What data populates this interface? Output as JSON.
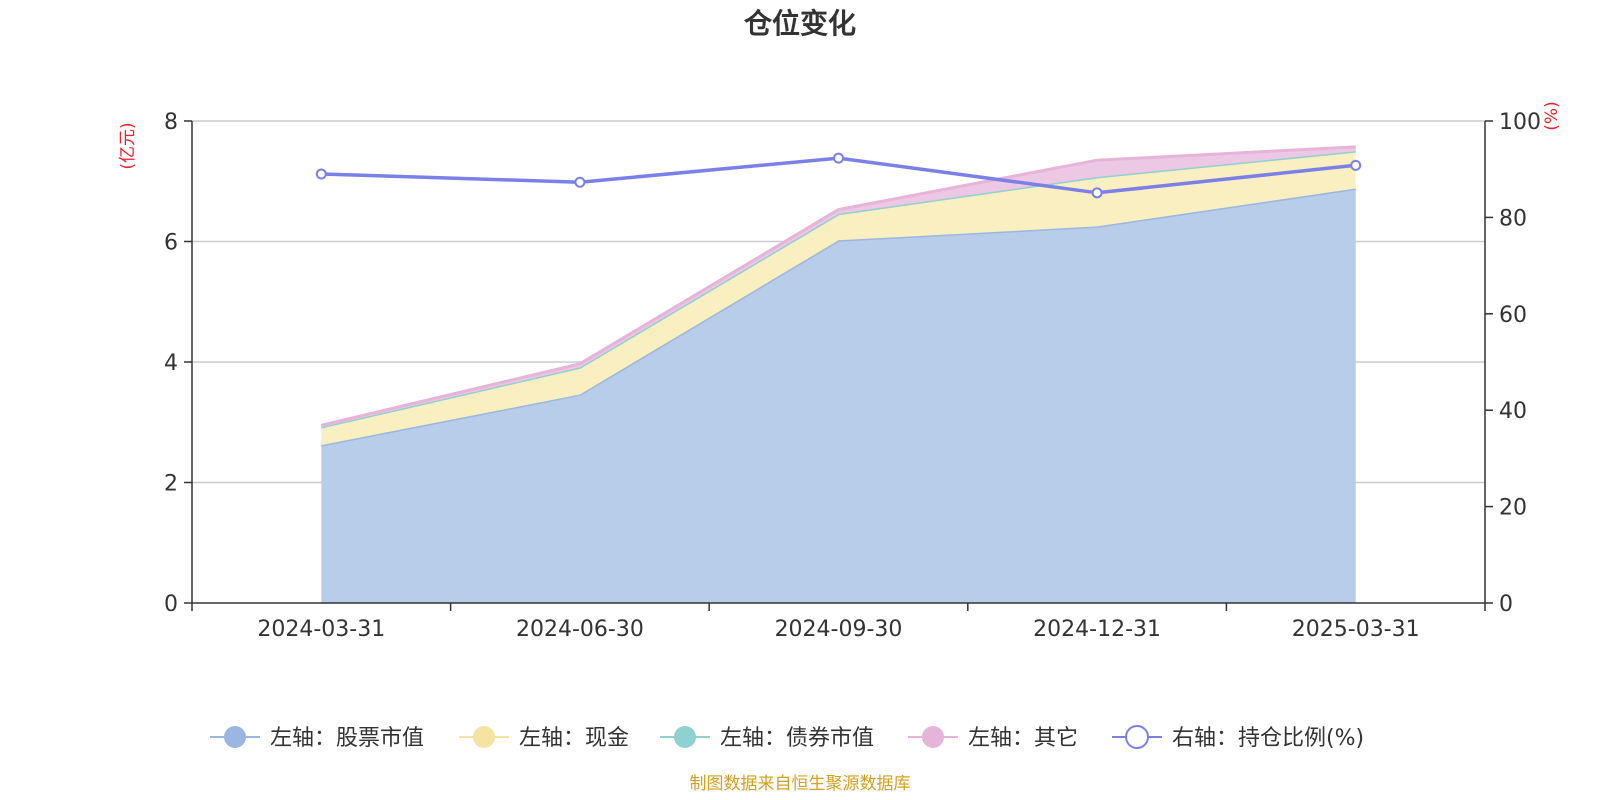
{
  "chart_data": {
    "type": "area",
    "title": "仓位变化",
    "categories": [
      "2024-03-31",
      "2024-06-30",
      "2024-09-30",
      "2024-12-31",
      "2025-03-31"
    ],
    "y_left": {
      "unit": "(亿元)",
      "ticks": [
        "0",
        "2",
        "4",
        "6",
        "8"
      ],
      "range": [
        0,
        8
      ]
    },
    "y_right": {
      "unit": "(%)",
      "ticks": [
        "0",
        "20",
        "40",
        "60",
        "80",
        "100"
      ],
      "range": [
        0,
        100
      ]
    },
    "series": [
      {
        "name": "左轴：股票市值",
        "axis": "left",
        "kind": "stacked-area",
        "color": "#9bb6e0",
        "fill": "#b8cdea",
        "values": [
          2.62,
          3.46,
          6.02,
          6.25,
          6.88
        ]
      },
      {
        "name": "左轴：现金",
        "axis": "left",
        "kind": "stacked-area",
        "color": "#f6e3a2",
        "fill": "#faefc0",
        "values": [
          0.3,
          0.45,
          0.44,
          0.82,
          0.62
        ]
      },
      {
        "name": "左轴：债券市值",
        "axis": "left",
        "kind": "stacked-area",
        "color": "#8fd1d1",
        "fill": "#b7e2e2",
        "values": [
          0,
          0,
          0,
          0,
          0
        ]
      },
      {
        "name": "左轴：其它",
        "axis": "left",
        "kind": "stacked-area",
        "color": "#e6b3d9",
        "fill": "#edc8e4",
        "values": [
          0.03,
          0.06,
          0.07,
          0.28,
          0.07
        ]
      },
      {
        "name": "右轴：持仓比例(%)",
        "axis": "right",
        "kind": "line",
        "color": "#7b7fe8",
        "values": [
          89,
          87.3,
          92.3,
          85.1,
          90.8
        ]
      }
    ],
    "grid": true,
    "legend_position": "bottom"
  },
  "footer": {
    "source_note": "制图数据来自恒生聚源数据库"
  },
  "colors": {
    "axis_unit": "#e8212d",
    "source_note": "#d4a020",
    "grid": "#cccccc",
    "axis": "#333333"
  }
}
